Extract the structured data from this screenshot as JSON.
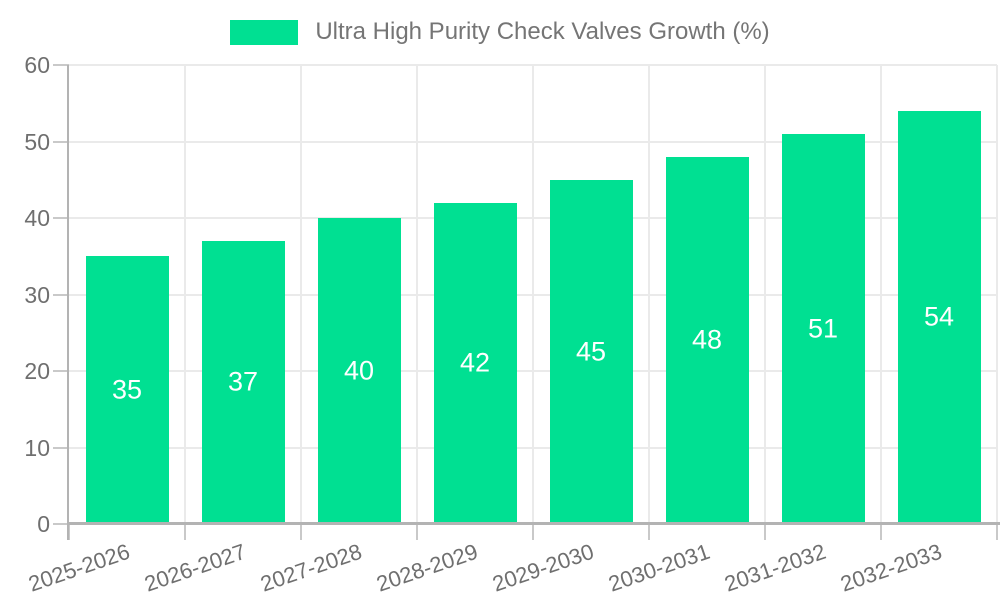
{
  "chart_data": {
    "type": "bar",
    "title": "Ultra High Purity Check Valves Growth (%)",
    "categories": [
      "2025-2026",
      "2026-2027",
      "2027-2028",
      "2028-2029",
      "2029-2030",
      "2030-2031",
      "2031-2032",
      "2032-2033"
    ],
    "values": [
      35,
      37,
      40,
      42,
      45,
      48,
      51,
      54
    ],
    "series": [
      {
        "name": "Ultra High Purity Check Valves Growth (%)",
        "values": [
          35,
          37,
          40,
          42,
          45,
          48,
          51,
          54
        ]
      }
    ],
    "xlabel": "",
    "ylabel": "",
    "ylim": [
      0,
      60
    ],
    "yticks": [
      0,
      10,
      20,
      30,
      40,
      50,
      60
    ],
    "grid": true,
    "legend_position": "top-center",
    "data_label_position": "inside-center",
    "x_label_rotation_deg": -19
  },
  "legend": {
    "items": [
      {
        "label": "Ultra High Purity Check Valves Growth (%)",
        "color": "#00E092"
      }
    ]
  },
  "colors": {
    "bar": "#00E092",
    "grid": "#eaeaea",
    "axis": "#b3b3b3",
    "tick": "#c9c9c9",
    "axis_text": "#6f6f6f",
    "title_text": "#757575",
    "data_label": "#ffffff",
    "background": "#ffffff"
  }
}
